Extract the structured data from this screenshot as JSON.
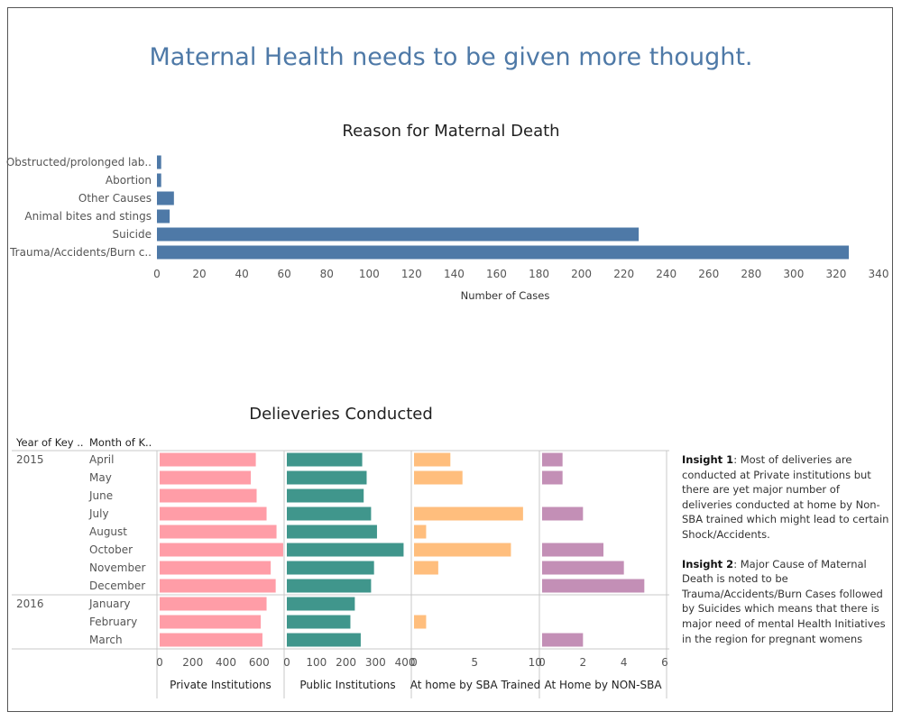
{
  "title": "Maternal Health needs to be given more thought.",
  "colors": {
    "title": "#4e79a7",
    "reason_bar": "#4e79a7",
    "private": "#ff9da7",
    "public": "#40968c",
    "sba": "#ffbe7d",
    "non_sba": "#c38fb6"
  },
  "chart_data": [
    {
      "type": "bar",
      "orientation": "horizontal",
      "title": "Reason for Maternal Death",
      "xlabel": "Number of Cases",
      "xlim": [
        0,
        340
      ],
      "xticks": [
        0,
        20,
        40,
        60,
        80,
        100,
        120,
        140,
        160,
        180,
        200,
        220,
        240,
        260,
        280,
        300,
        320,
        340
      ],
      "categories": [
        "Obstructed/prolonged lab..",
        "Abortion",
        "Other Causes",
        "Animal bites and stings",
        "Suicide",
        "Trauma/Accidents/Burn c.."
      ],
      "values": [
        2,
        2,
        8,
        6,
        227,
        326
      ]
    },
    {
      "type": "bar",
      "orientation": "horizontal",
      "title": "Delieveries Conducted",
      "row_headers": [
        "Year of Key ..",
        "Month of K.."
      ],
      "rows": [
        {
          "year": "2015",
          "month": "April"
        },
        {
          "year": "",
          "month": "May"
        },
        {
          "year": "",
          "month": "June"
        },
        {
          "year": "",
          "month": "July"
        },
        {
          "year": "",
          "month": "August"
        },
        {
          "year": "",
          "month": "October"
        },
        {
          "year": "",
          "month": "November"
        },
        {
          "year": "",
          "month": "December"
        },
        {
          "year": "2016",
          "month": "January"
        },
        {
          "year": "",
          "month": "February"
        },
        {
          "year": "",
          "month": "March"
        }
      ],
      "series": [
        {
          "name": "Private Institutions",
          "max": 740,
          "ticks": [
            0,
            200,
            400,
            600
          ],
          "values": [
            580,
            550,
            585,
            645,
            705,
            745,
            670,
            700,
            645,
            610,
            620
          ]
        },
        {
          "name": "Public Institutions",
          "max": 415,
          "ticks": [
            0,
            100,
            200,
            300,
            400
          ],
          "values": [
            255,
            270,
            260,
            285,
            305,
            395,
            295,
            285,
            230,
            215,
            250
          ]
        },
        {
          "name": "At home by SBA Trained",
          "max": 10.2,
          "ticks": [
            0,
            5,
            10
          ],
          "values": [
            3,
            4,
            0,
            9,
            1,
            8,
            2,
            0,
            0,
            1,
            0
          ]
        },
        {
          "name": "At Home by NON-SBA",
          "max": 6,
          "ticks": [
            0,
            2,
            4,
            6
          ],
          "values": [
            1,
            1,
            0,
            2,
            0,
            3,
            4,
            5,
            0,
            0,
            2
          ]
        }
      ]
    }
  ],
  "insights": [
    {
      "label": "Insight 1",
      "text": ": Most of deliveries are conducted at Private institutions but there are yet major number of deliveries conducted at home by Non- SBA trained which might lead to certain Shock/Accidents."
    },
    {
      "label": "Insight 2",
      "text": ": Major Cause of Maternal Death is noted to be Trauma/Accidents/Burn Cases followed by Suicides which means that there is major need of mental Health Initiatives in the region for pregnant womens"
    }
  ]
}
